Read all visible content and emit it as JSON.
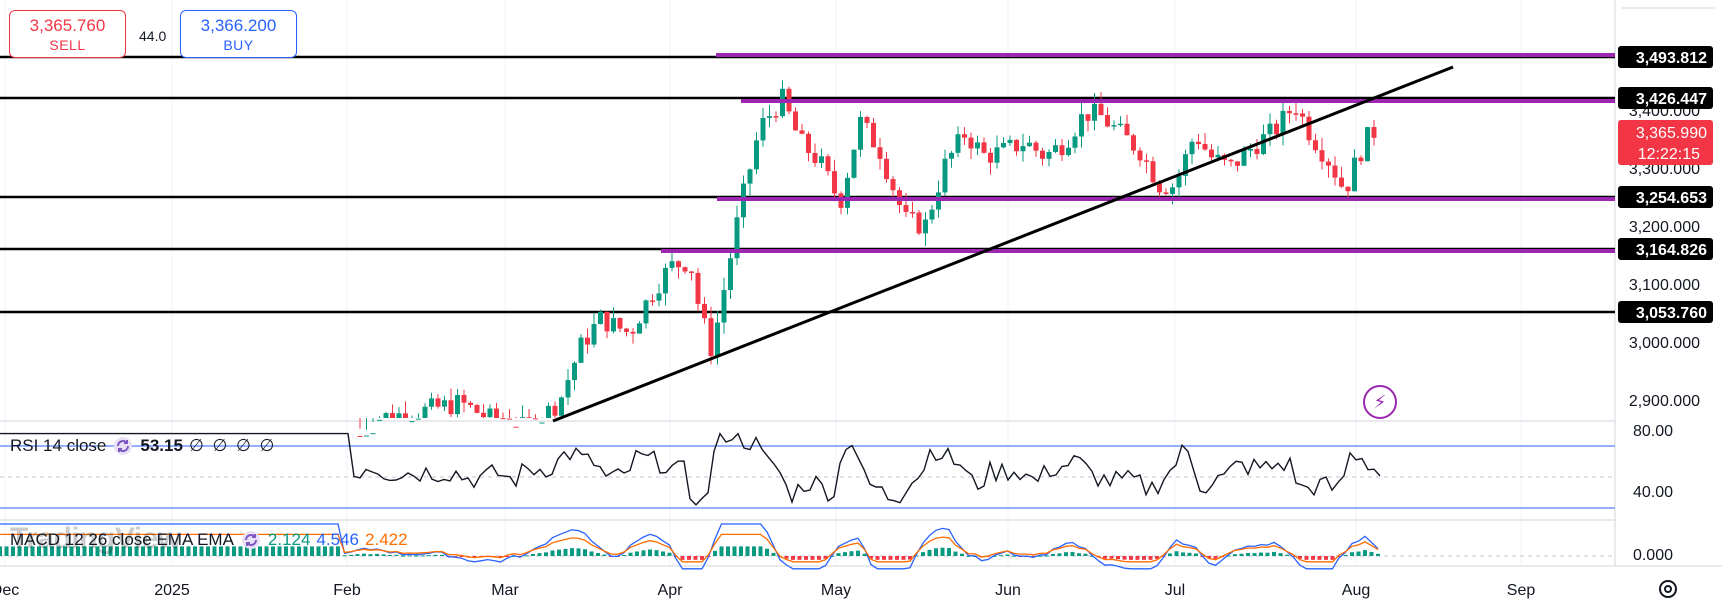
{
  "trade": {
    "sell_price": "3,365.760",
    "sell_label": "SELL",
    "buy_price": "3,366.200",
    "buy_label": "BUY",
    "spread": "44.0"
  },
  "price_axis": {
    "ticks": [
      "3,400.000",
      "3,300.000",
      "3,200.000",
      "3,100.000",
      "3,000.000",
      "2,900.000"
    ],
    "level_labels": [
      "3,493.812",
      "3,426.447",
      "3,254.653",
      "3,164.826",
      "3,053.760"
    ],
    "last_price": "3,365.990",
    "countdown": "12:22:15"
  },
  "time_axis": {
    "labels": [
      "Dec",
      "2025",
      "Feb",
      "Mar",
      "Apr",
      "May",
      "Jun",
      "Jul",
      "Aug",
      "Sep"
    ]
  },
  "rsi": {
    "label": "RSI 14 close",
    "value": "53.15",
    "extra": "∅ ∅ ∅ ∅",
    "axis_ticks": [
      "80.00",
      "40.00"
    ]
  },
  "macd": {
    "label": "MACD 12 26 close EMA EMA",
    "histogram": "2.124",
    "macd_value": "4.546",
    "signal_value": "2.422",
    "axis_tick": "0.000"
  },
  "watermark": "TradingView",
  "icons": {
    "indicator_settings": "settings-swirl-icon",
    "alerts": "lightning-icon",
    "chart_settings": "gear-icon"
  },
  "colors": {
    "up": "#089981",
    "down": "#f23645",
    "support_resistance": "#9c27b0",
    "macd_line": "#2962ff",
    "signal_line": "#ff6d00",
    "level_label_bg": "#000000",
    "last_price_bg": "#f23645"
  }
}
